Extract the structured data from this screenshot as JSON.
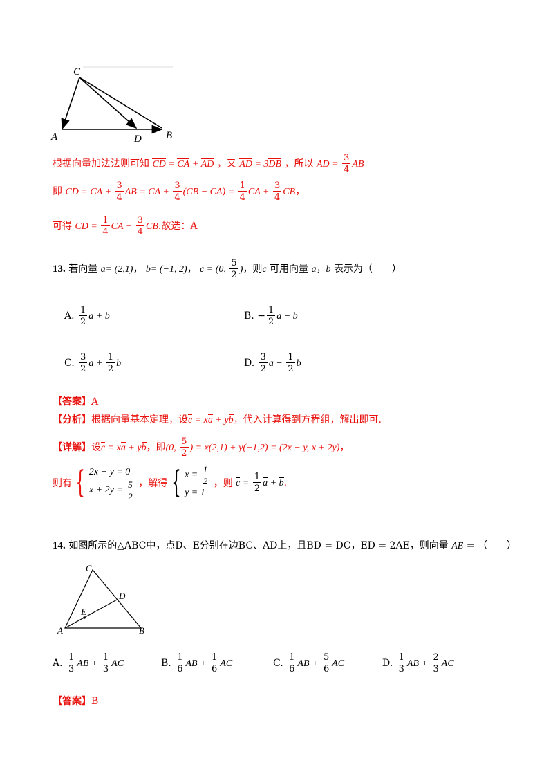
{
  "fig12": {
    "C": "C",
    "A": "A",
    "D": "D",
    "B": "B"
  },
  "sol12": {
    "line1_pre": "根据向量加法法则可知",
    "line1_mid": "，又",
    "line1_post": "，所以",
    "line2_pre": "即",
    "line3_pre": "可得",
    "line3_post": ".故选：A"
  },
  "q13": {
    "num": "13.",
    "stem_pre": "若向量",
    "a_val": "= (2,1)",
    "b_val": "= (−1, 2)",
    "then": "，则",
    "can": "可用向量",
    "express": "表示为（　　）",
    "options": {
      "A": "A.",
      "B": "B.",
      "C": "C.",
      "D": "D."
    },
    "answer_tag": "【答案】",
    "answer": "A",
    "analysis_tag": "【分析】",
    "analysis_pre": "根据向量基本定理，设",
    "analysis_post": "，代入计算得到方程组，解出即可.",
    "detail_tag": "【详解】",
    "detail_pre": "设",
    "detail_mid": "，即",
    "sys_pre": "则有",
    "sys_mid": "，解得",
    "sys_then": "，则"
  },
  "q14": {
    "num": "14.",
    "stem": "如图所示的△ABC中，点D、E分别在边BC、AD上，且BD = DC，ED = 2AE，则向量",
    "paren": "（　　）",
    "fig": {
      "C": "C",
      "D": "D",
      "E": "E",
      "A": "A",
      "B": "B"
    },
    "options": {
      "A": "A.",
      "B": "B.",
      "C": "C.",
      "D": "D."
    },
    "answer_tag": "【答案】",
    "answer": "B"
  }
}
